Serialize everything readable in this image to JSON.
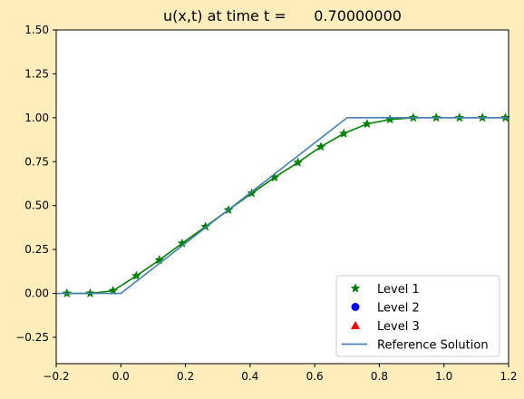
{
  "chart_data": {
    "type": "line",
    "title": "u(x,t) at time t =      0.70000000",
    "xlabel": "",
    "ylabel": "",
    "xlim": [
      -0.2,
      1.2
    ],
    "ylim": [
      -0.4,
      1.5
    ],
    "xticks": [
      -0.2,
      0.0,
      0.2,
      0.4,
      0.6,
      0.8,
      1.0,
      1.2
    ],
    "yticks": [
      -0.25,
      0.0,
      0.25,
      0.5,
      0.75,
      1.0,
      1.25,
      1.5
    ],
    "xtick_labels": [
      "−0.2",
      "0.0",
      "0.2",
      "0.4",
      "0.6",
      "0.8",
      "1.0",
      "1.2"
    ],
    "ytick_labels": [
      "−0.25",
      "0.00",
      "0.25",
      "0.50",
      "0.75",
      "1.00",
      "1.25",
      "1.50"
    ],
    "grid": false,
    "legend_position": "lower-right",
    "series": [
      {
        "name": "Level 1",
        "color": "#008000",
        "marker": "star",
        "line": true,
        "x": [
          -0.167,
          -0.095,
          -0.024,
          0.048,
          0.119,
          0.19,
          0.262,
          0.333,
          0.405,
          0.476,
          0.548,
          0.619,
          0.69,
          0.762,
          0.833,
          0.905,
          0.976,
          1.048,
          1.119,
          1.19
        ],
        "y": [
          0.0,
          0.0,
          0.015,
          0.1,
          0.19,
          0.285,
          0.38,
          0.475,
          0.57,
          0.66,
          0.745,
          0.835,
          0.91,
          0.965,
          0.99,
          1.0,
          1.0,
          1.0,
          1.0,
          1.0
        ]
      },
      {
        "name": "Level 2",
        "color": "#0000ff",
        "marker": "circle",
        "line": false,
        "x": [],
        "y": []
      },
      {
        "name": "Level 3",
        "color": "#ff0000",
        "marker": "triangle",
        "line": false,
        "x": [],
        "y": []
      },
      {
        "name": "Reference Solution",
        "color": "#4682b4",
        "marker": "none",
        "line": true,
        "x": [
          -0.2,
          0.0,
          0.7,
          1.2
        ],
        "y": [
          0.0,
          0.0,
          1.0,
          1.0
        ]
      }
    ]
  }
}
